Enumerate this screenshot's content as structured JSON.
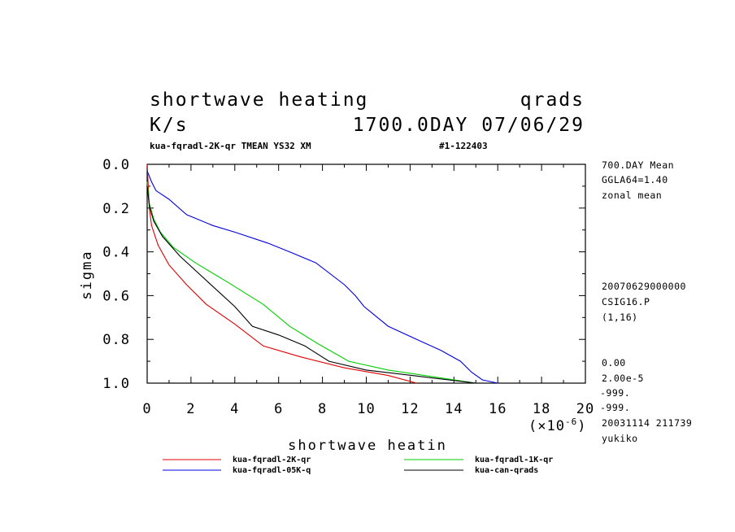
{
  "header": {
    "title_left": "shortwave heating",
    "title_right": "qrads",
    "units": "K/s",
    "time": "1700.0DAY 07/06/29",
    "run_info": "kua-fqradl-2K-qr TMEAN YS32 XM",
    "run_id": "#1-122403"
  },
  "side_notes": {
    "top": [
      "700.DAY Mean",
      "GGLA64=1.40",
      "zonal mean"
    ],
    "middle": [
      "20070629000000",
      "CSIG16.P",
      "(1,16)"
    ],
    "bottom": [
      "0.00",
      "2.00e-5",
      "-999.",
      "-999.",
      "20031114 211739",
      "yukiko"
    ]
  },
  "chart_data": {
    "type": "line",
    "xlabel": "shortwave heatin",
    "ylabel": "sigma",
    "x_scale_label": "(×10",
    "x_scale_exp": "-6",
    "x_scale_close": ")",
    "xlim": [
      0,
      20
    ],
    "ylim": [
      1.0,
      0.0
    ],
    "y_inverted": true,
    "x_ticks": [
      "0",
      "2",
      "4",
      "6",
      "8",
      "10",
      "12",
      "14",
      "16",
      "18",
      "20"
    ],
    "y_ticks": [
      "0.0",
      "0.2",
      "0.4",
      "0.6",
      "0.8",
      "1.0"
    ],
    "grid": false,
    "legend_placement": "bottom",
    "series": [
      {
        "name": "kua-fqradl-2K-qr",
        "color": "#e00000",
        "points": [
          [
            0.0,
            0.0
          ],
          [
            0.1,
            0.2
          ],
          [
            0.2,
            0.28
          ],
          [
            0.5,
            0.37
          ],
          [
            1.0,
            0.46
          ],
          [
            1.8,
            0.55
          ],
          [
            2.7,
            0.64
          ],
          [
            4.0,
            0.73
          ],
          [
            5.3,
            0.83
          ],
          [
            7.0,
            0.88
          ],
          [
            9.0,
            0.93
          ],
          [
            11.0,
            0.965
          ],
          [
            12.3,
            1.0
          ]
        ]
      },
      {
        "name": "kua-fqradl-05K-q",
        "color": "#0000e0",
        "points": [
          [
            0.0,
            0.03
          ],
          [
            0.2,
            0.08
          ],
          [
            0.4,
            0.12
          ],
          [
            1.0,
            0.16
          ],
          [
            1.8,
            0.23
          ],
          [
            3.0,
            0.28
          ],
          [
            4.0,
            0.31
          ],
          [
            5.5,
            0.36
          ],
          [
            6.5,
            0.4
          ],
          [
            7.7,
            0.45
          ],
          [
            9.0,
            0.55
          ],
          [
            9.5,
            0.6
          ],
          [
            9.9,
            0.65
          ],
          [
            11.0,
            0.74
          ],
          [
            12.3,
            0.8
          ],
          [
            13.4,
            0.85
          ],
          [
            14.3,
            0.9
          ],
          [
            14.8,
            0.95
          ],
          [
            15.3,
            0.985
          ],
          [
            16.0,
            1.0
          ]
        ]
      },
      {
        "name": "kua-fqradl-1K-qr",
        "color": "#00d000",
        "points": [
          [
            0.0,
            0.08
          ],
          [
            0.1,
            0.18
          ],
          [
            0.3,
            0.25
          ],
          [
            0.6,
            0.31
          ],
          [
            1.2,
            0.38
          ],
          [
            2.2,
            0.45
          ],
          [
            3.7,
            0.54
          ],
          [
            5.3,
            0.64
          ],
          [
            6.5,
            0.74
          ],
          [
            7.8,
            0.82
          ],
          [
            9.2,
            0.9
          ],
          [
            11.0,
            0.94
          ],
          [
            13.0,
            0.97
          ],
          [
            15.0,
            1.0
          ]
        ]
      },
      {
        "name": "kua-can-qrads",
        "color": "#000000",
        "points": [
          [
            0.0,
            0.1
          ],
          [
            0.1,
            0.19
          ],
          [
            0.3,
            0.26
          ],
          [
            0.7,
            0.33
          ],
          [
            1.5,
            0.42
          ],
          [
            2.8,
            0.54
          ],
          [
            4.0,
            0.65
          ],
          [
            4.8,
            0.74
          ],
          [
            6.0,
            0.78
          ],
          [
            7.2,
            0.83
          ],
          [
            8.3,
            0.9
          ],
          [
            10.0,
            0.94
          ],
          [
            12.5,
            0.97
          ],
          [
            15.0,
            1.0
          ]
        ]
      }
    ]
  }
}
